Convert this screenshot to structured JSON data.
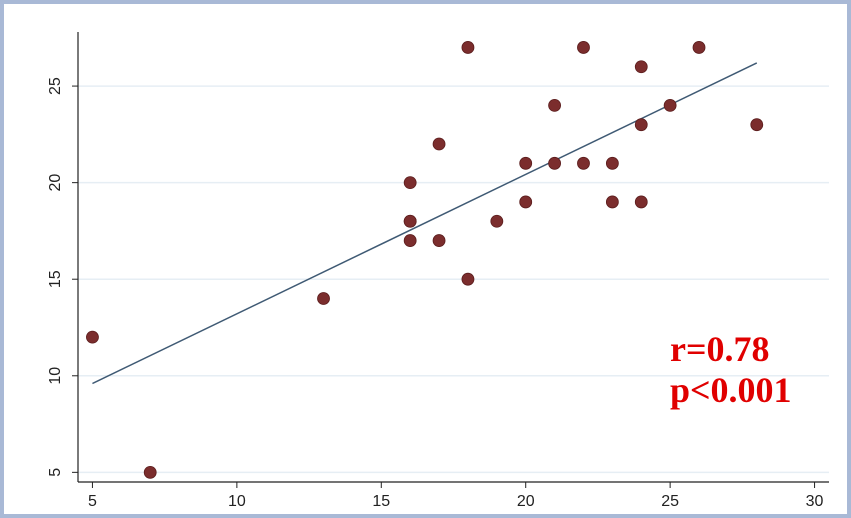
{
  "chart_data": {
    "type": "scatter",
    "title": "",
    "xlabel": "",
    "ylabel": "",
    "xlim": [
      4.5,
      30.5
    ],
    "ylim": [
      4.5,
      27.8
    ],
    "x_ticks": [
      5,
      10,
      15,
      20,
      25,
      30
    ],
    "y_ticks": [
      5,
      10,
      15,
      20,
      25
    ],
    "grid": "horizontal",
    "points": [
      {
        "x": 5,
        "y": 12
      },
      {
        "x": 7,
        "y": 5
      },
      {
        "x": 13,
        "y": 14
      },
      {
        "x": 16,
        "y": 20
      },
      {
        "x": 16,
        "y": 18
      },
      {
        "x": 16,
        "y": 18
      },
      {
        "x": 16,
        "y": 17
      },
      {
        "x": 17,
        "y": 22
      },
      {
        "x": 17,
        "y": 17
      },
      {
        "x": 18,
        "y": 27
      },
      {
        "x": 18,
        "y": 15
      },
      {
        "x": 19,
        "y": 18
      },
      {
        "x": 20,
        "y": 21
      },
      {
        "x": 20,
        "y": 19
      },
      {
        "x": 21,
        "y": 24
      },
      {
        "x": 21,
        "y": 21
      },
      {
        "x": 22,
        "y": 27
      },
      {
        "x": 22,
        "y": 21
      },
      {
        "x": 23,
        "y": 21
      },
      {
        "x": 23,
        "y": 19
      },
      {
        "x": 24,
        "y": 26
      },
      {
        "x": 24,
        "y": 23
      },
      {
        "x": 24,
        "y": 19
      },
      {
        "x": 25,
        "y": 24
      },
      {
        "x": 26,
        "y": 27
      },
      {
        "x": 28,
        "y": 23
      }
    ],
    "fit_line": {
      "x1": 5,
      "y1": 9.6,
      "x2": 28,
      "y2": 26.2
    },
    "annotations": [
      "r=0.78",
      "p<0.001"
    ],
    "colors": {
      "marker": "#7b2d2d",
      "fit_line": "#3f5a74",
      "gridline": "#e6eef4",
      "axis": "#222222",
      "annotation": "#e00000",
      "frame": "#a9b9d6"
    }
  }
}
